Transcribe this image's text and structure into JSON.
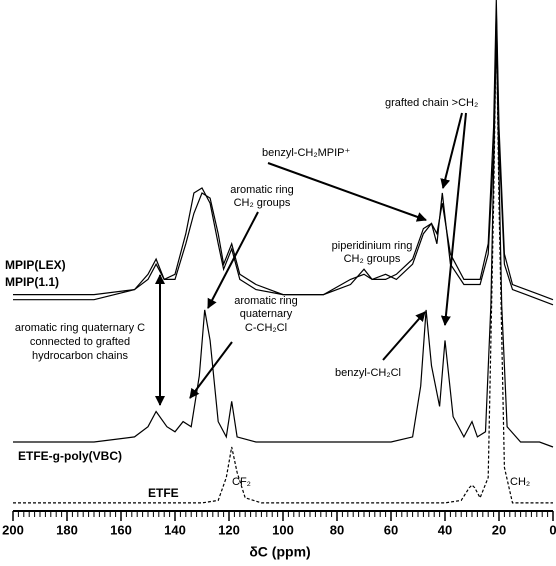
{
  "chart_data": {
    "type": "line",
    "x_label": "δC (ppm)",
    "xlim": [
      200,
      0
    ],
    "xticks": [
      200,
      180,
      160,
      140,
      120,
      100,
      80,
      60,
      40,
      20,
      0
    ],
    "x_minor_tick_interval": 2,
    "ylim": [
      0,
      100
    ],
    "series": [
      {
        "name": "MPIP(LEX)",
        "color": "#000000",
        "dash": false,
        "x": [
          200,
          170,
          155,
          150,
          147,
          144,
          140,
          136,
          133,
          130,
          127,
          124,
          122,
          119,
          116,
          110,
          100,
          85,
          75,
          70,
          67,
          62,
          58,
          52,
          48,
          45,
          43,
          41,
          38,
          33,
          27,
          24,
          22,
          21,
          20,
          18,
          15,
          10,
          5,
          0
        ],
        "values": [
          42,
          42,
          43,
          45,
          48,
          45,
          46,
          54,
          62,
          63,
          60,
          52,
          47,
          51,
          45,
          43,
          42,
          42,
          44,
          47,
          45,
          46,
          45,
          48,
          54,
          56,
          54,
          60,
          50,
          45,
          45,
          52,
          75,
          100,
          75,
          50,
          44,
          43,
          42,
          41
        ]
      },
      {
        "name": "MPIP(1.1)",
        "color": "#000000",
        "dash": false,
        "x": [
          200,
          170,
          155,
          150,
          147,
          144,
          140,
          136,
          133,
          130,
          127,
          124,
          122,
          119,
          116,
          110,
          100,
          85,
          75,
          70,
          67,
          62,
          58,
          52,
          48,
          45,
          43,
          41,
          38,
          33,
          27,
          24,
          22,
          21,
          20,
          18,
          15,
          10,
          5,
          0
        ],
        "values": [
          41,
          41,
          43,
          46,
          49,
          45,
          45,
          52,
          58,
          62,
          61,
          54,
          48,
          52,
          46,
          44,
          42,
          42,
          45,
          46,
          45,
          45,
          46,
          49,
          55,
          56,
          52,
          62,
          48,
          44,
          44,
          50,
          70,
          98,
          72,
          48,
          43,
          42,
          41,
          40
        ]
      },
      {
        "name": "ETFE-g-poly(VBC)",
        "color": "#000000",
        "dash": false,
        "x": [
          200,
          170,
          155,
          150,
          147,
          143,
          140,
          137,
          134,
          131,
          129,
          127,
          124,
          121,
          119,
          117,
          110,
          80,
          60,
          52,
          49,
          47,
          45,
          42,
          40,
          37,
          33,
          30,
          28,
          25,
          23,
          21,
          19,
          17,
          12,
          5,
          0
        ],
        "values": [
          13,
          13,
          14,
          16,
          19,
          16,
          15,
          17,
          16,
          26,
          39,
          33,
          17,
          14,
          21,
          14,
          13,
          13,
          13,
          14,
          24,
          39,
          28,
          20,
          33,
          18,
          14,
          17,
          14,
          15,
          40,
          93,
          40,
          16,
          13,
          13,
          12
        ]
      },
      {
        "name": "ETFE",
        "color": "#000000",
        "dash": true,
        "x": [
          200,
          130,
          124,
          121,
          119,
          117,
          114,
          108,
          40,
          34,
          31,
          30,
          29,
          27,
          24,
          22,
          21,
          20,
          18,
          15,
          0
        ],
        "values": [
          1,
          1,
          1.5,
          6,
          12,
          7,
          2,
          1,
          1,
          1.5,
          4,
          4.5,
          4,
          2,
          6,
          60,
          96,
          60,
          8,
          1,
          1
        ]
      }
    ],
    "annotations": [
      "grafted chain >CH₂",
      "benzyl-CH₂MPIP⁺",
      "aromatic ring",
      "CH₂ groups",
      "piperidinium ring",
      "CH₂ groups",
      "aromatic ring",
      "quaternary",
      "C-CH₂Cl",
      "aromatic ring quaternary C",
      "connected to grafted",
      "hydrocarbon chains",
      "benzyl-CH₂Cl",
      "CF₂",
      "CH₂"
    ]
  }
}
